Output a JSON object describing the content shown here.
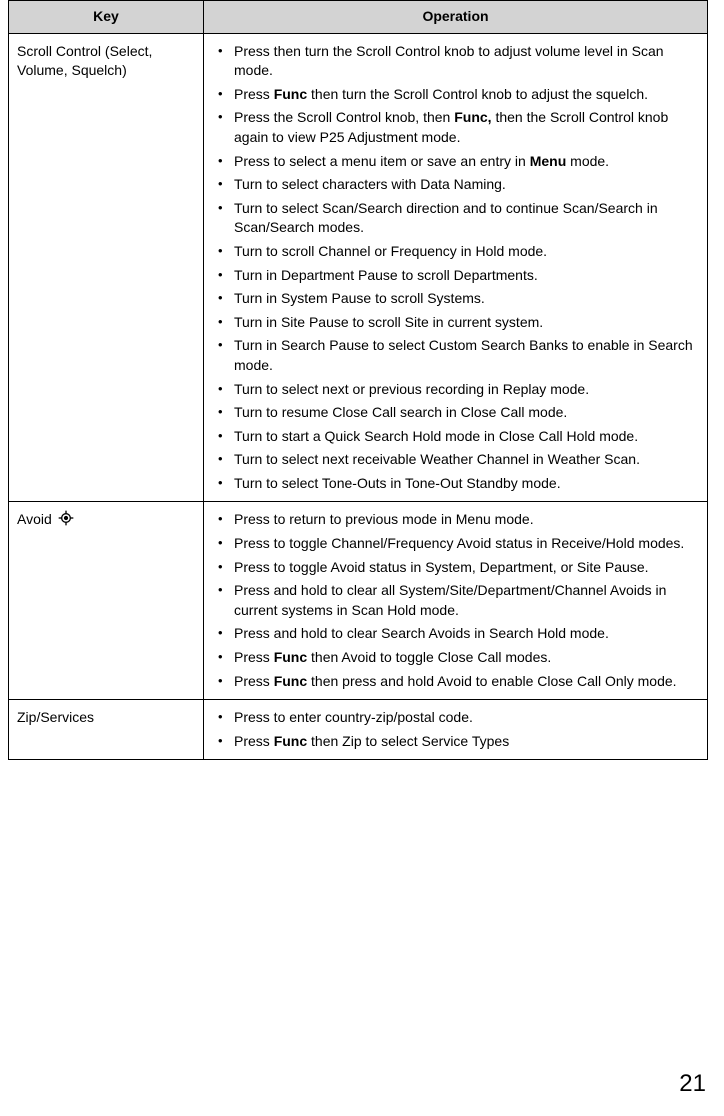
{
  "pageNumber": "21",
  "table": {
    "headers": {
      "key": "Key",
      "operation": "Operation"
    },
    "rows": [
      {
        "key": "Scroll Control (Select, Volume, Squelch)",
        "hasIcon": false,
        "ops": [
          [
            {
              "t": "Press then turn the Scroll Control knob to adjust volume level in Scan mode."
            }
          ],
          [
            {
              "t": "Press "
            },
            {
              "t": "Func",
              "b": true
            },
            {
              "t": " then turn the Scroll Control knob to adjust the squelch."
            }
          ],
          [
            {
              "t": "Press the Scroll Control knob, then "
            },
            {
              "t": "Func,",
              "b": true
            },
            {
              "t": " then the Scroll Control knob again to view P25 Adjustment mode."
            }
          ],
          [
            {
              "t": "Press to select a menu item or save an entry in "
            },
            {
              "t": "Menu",
              "b": true
            },
            {
              "t": " mode."
            }
          ],
          [
            {
              "t": "Turn to select characters with Data Naming."
            }
          ],
          [
            {
              "t": "Turn to select Scan/Search direction and to continue Scan/Search in Scan/Search modes."
            }
          ],
          [
            {
              "t": "Turn to scroll Channel or Frequency in Hold mode."
            }
          ],
          [
            {
              "t": "Turn in Department Pause to scroll Departments."
            }
          ],
          [
            {
              "t": "Turn in System Pause to scroll Systems."
            }
          ],
          [
            {
              "t": "Turn in Site Pause to scroll Site in current system."
            }
          ],
          [
            {
              "t": "Turn in Search Pause to select Custom Search Banks to enable in Search mode."
            }
          ],
          [
            {
              "t": "Turn to select next or previous recording in Replay mode."
            }
          ],
          [
            {
              "t": "Turn to resume Close Call search in Close Call mode."
            }
          ],
          [
            {
              "t": "Turn to start a Quick Search Hold mode in Close Call Hold mode."
            }
          ],
          [
            {
              "t": "Turn to select next receivable Weather Channel in Weather Scan."
            }
          ],
          [
            {
              "t": "Turn to select Tone-Outs in Tone-Out Standby mode."
            }
          ]
        ]
      },
      {
        "key": "Avoid",
        "hasIcon": true,
        "ops": [
          [
            {
              "t": "Press to return to previous mode in Menu mode."
            }
          ],
          [
            {
              "t": "Press to toggle Channel/Frequency Avoid status in Receive/Hold modes."
            }
          ],
          [
            {
              "t": "Press to toggle Avoid status in System, Department, or Site Pause."
            }
          ],
          [
            {
              "t": "Press and hold to clear all System/Site/Department/Channel Avoids in current systems in Scan Hold mode."
            }
          ],
          [
            {
              "t": "Press and hold to clear Search Avoids in Search Hold mode."
            }
          ],
          [
            {
              "t": "Press "
            },
            {
              "t": "Func",
              "b": true
            },
            {
              "t": " then Avoid to toggle Close Call modes."
            }
          ],
          [
            {
              "t": "Press "
            },
            {
              "t": "Func",
              "b": true
            },
            {
              "t": " then press and hold Avoid to enable Close Call Only mode."
            }
          ]
        ]
      },
      {
        "key": "Zip/Services",
        "hasIcon": false,
        "ops": [
          [
            {
              "t": "Press to enter country-zip/postal code."
            }
          ],
          [
            {
              "t": "Press "
            },
            {
              "t": "Func",
              "b": true
            },
            {
              "t": " then Zip to select Service Types"
            }
          ]
        ]
      }
    ]
  }
}
